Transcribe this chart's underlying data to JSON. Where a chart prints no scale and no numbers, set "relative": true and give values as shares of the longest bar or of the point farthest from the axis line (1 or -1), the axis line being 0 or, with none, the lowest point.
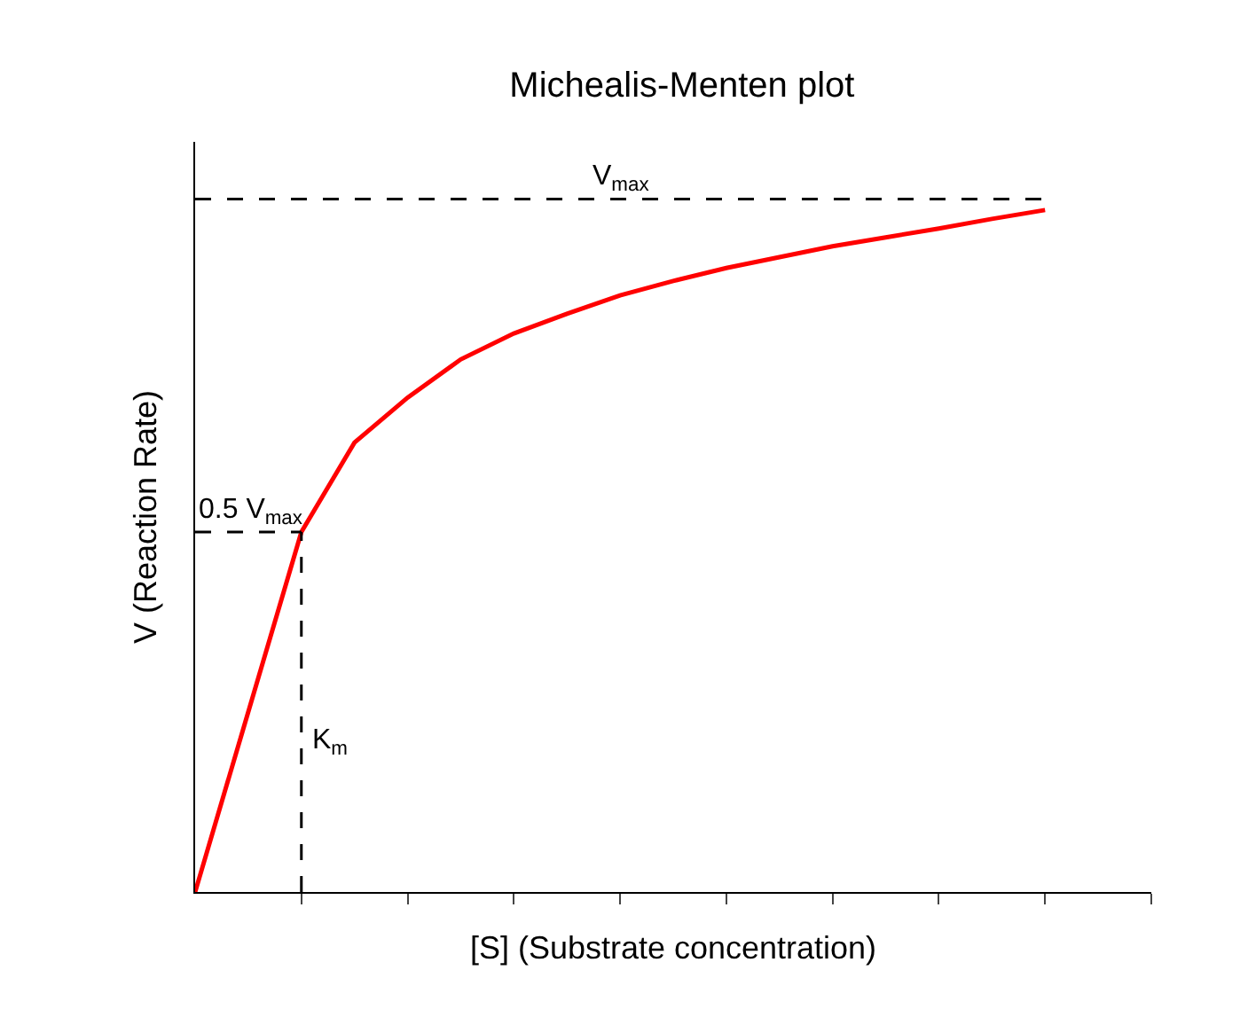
{
  "chart_data": {
    "type": "line",
    "title": "Michealis-Menten plot",
    "xlabel": "[S] (Substrate concentration)",
    "ylabel": "V (Reaction Rate)",
    "relative": true,
    "categories": [
      null,
      null,
      null,
      null,
      null,
      null,
      null,
      null,
      null,
      null,
      null,
      null,
      null,
      null,
      null,
      null,
      null,
      null,
      null
    ],
    "series": [
      {
        "color": "#ff0000",
        "values": [
          0,
          0.264,
          0.528,
          0.659,
          0.725,
          0.781,
          0.819,
          0.848,
          0.875,
          0.896,
          0.915,
          0.931,
          0.947,
          0.96,
          0.973,
          0.987,
          1,
          null,
          null
        ]
      }
    ],
    "ref_lines": [
      {
        "axis": "y",
        "value": 1.016,
        "label": "V$_{max}$",
        "color": "#000000",
        "line_style": "dashed"
      },
      {
        "axis": "y",
        "value": 0.528,
        "label": "0.5 V$_{max}$",
        "color": "#000000",
        "line_style": "dashed"
      }
    ],
    "annotations": [
      "K$_{m}$"
    ]
  }
}
